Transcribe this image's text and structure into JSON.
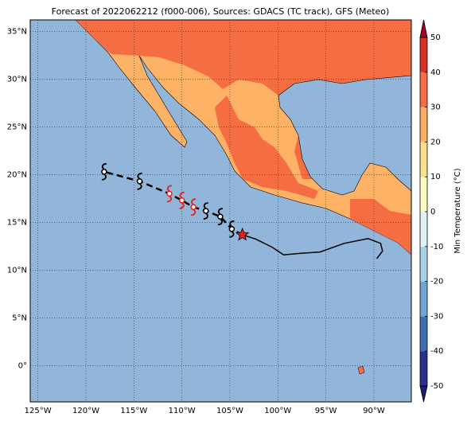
{
  "map": {
    "title": "Forecast of 2022062212 (f000-006), Sources: GDACS (TC track), GFS (Meteo)",
    "xlim": [
      -125.8,
      -86.1
    ],
    "ylim": [
      -3.8,
      36.2
    ],
    "xticks": [
      {
        "value": -125,
        "label": "125°W"
      },
      {
        "value": -120,
        "label": "120°W"
      },
      {
        "value": -115,
        "label": "115°W"
      },
      {
        "value": -110,
        "label": "110°W"
      },
      {
        "value": -105,
        "label": "105°W"
      },
      {
        "value": -100,
        "label": "100°W"
      },
      {
        "value": -95,
        "label": "95°W"
      },
      {
        "value": -90,
        "label": "90°W"
      }
    ],
    "yticks": [
      {
        "value": 0,
        "label": "0°"
      },
      {
        "value": 5,
        "label": "5°N"
      },
      {
        "value": 10,
        "label": "10°N"
      },
      {
        "value": 15,
        "label": "15°N"
      },
      {
        "value": 20,
        "label": "20°N"
      },
      {
        "value": 25,
        "label": "25°N"
      },
      {
        "value": 30,
        "label": "30°N"
      },
      {
        "value": 35,
        "label": "35°N"
      }
    ],
    "grid": true,
    "past_track": {
      "lon": [
        -89.7,
        -89.1,
        -89.3,
        -90.6,
        -93.1,
        -95.6,
        -97.7,
        -99.4,
        -100.6,
        -102.3,
        -103.7
      ],
      "lat": [
        11.2,
        12.0,
        12.8,
        13.3,
        12.8,
        11.9,
        11.75,
        11.6,
        12.4,
        13.25,
        13.7
      ]
    },
    "current": {
      "lon": -103.7,
      "lat": 13.7,
      "color": "#e8201c"
    },
    "forecast": {
      "lon": [
        -103.7,
        -104.8,
        -106.0,
        -107.5,
        -108.8,
        -110.0,
        -111.3,
        -114.4,
        -118.1
      ],
      "lat": [
        13.7,
        14.3,
        15.6,
        16.2,
        16.6,
        17.3,
        18.0,
        19.3,
        20.3
      ],
      "colors": [
        null,
        "#000000",
        "#000000",
        "#000000",
        "#e8201c",
        "#e8201c",
        "#e8201c",
        "#000000",
        "#000000"
      ]
    }
  },
  "colorbar": {
    "label": "Min Temperature (°C)",
    "lim": [
      -50,
      50
    ],
    "ticks": [
      -50,
      -40,
      -30,
      -20,
      -10,
      0,
      10,
      20,
      30,
      40,
      50
    ],
    "colors": [
      "#2b2f8f",
      "#3f6fb0",
      "#70a6cf",
      "#a8d3e6",
      "#def1f6",
      "#fefec0",
      "#fde08e",
      "#fdae61",
      "#f46d43",
      "#d73027"
    ],
    "extend_colors": [
      "#1a1f6e",
      "#a50026"
    ]
  }
}
